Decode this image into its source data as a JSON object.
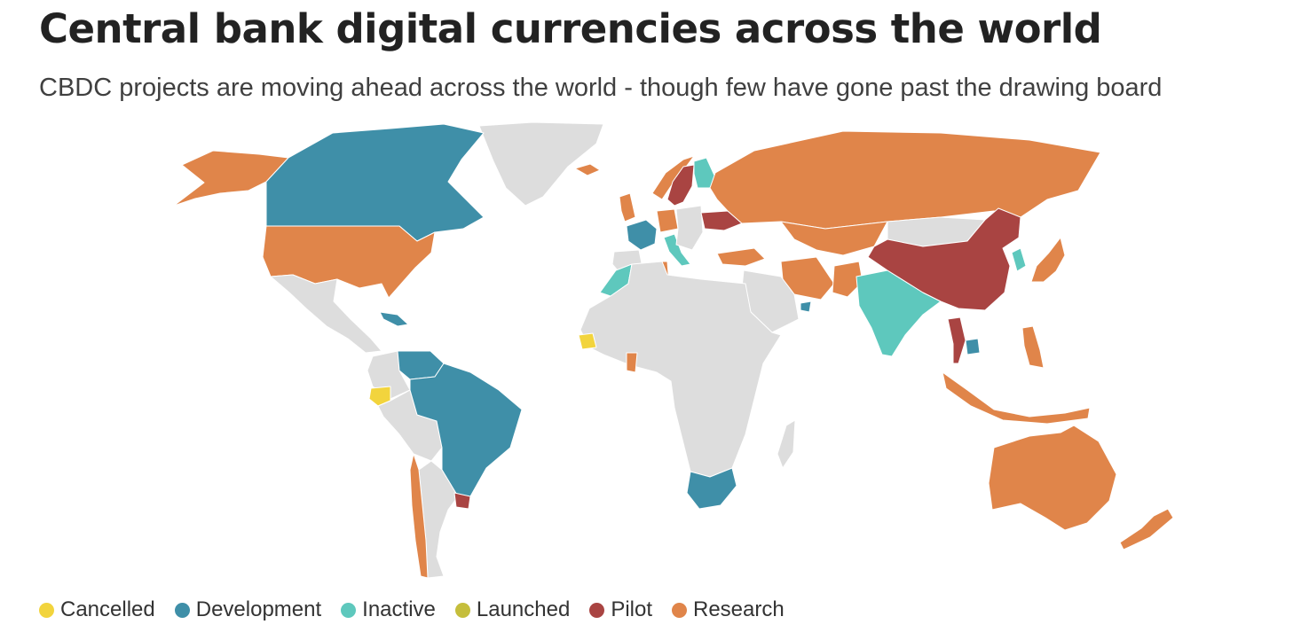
{
  "title": "Central bank digital currencies across the world",
  "subtitle": "CBDC projects are moving ahead across the world - though few have gone past the drawing board",
  "colors": {
    "cancelled": "#f2d43d",
    "development": "#3f8fa8",
    "inactive": "#5ec8bd",
    "launched": "#c5be3c",
    "pilot": "#a94442",
    "research": "#e0854a",
    "none": "#dddddd"
  },
  "legend": [
    {
      "label": "Cancelled",
      "status": "cancelled"
    },
    {
      "label": "Development",
      "status": "development"
    },
    {
      "label": "Inactive",
      "status": "inactive"
    },
    {
      "label": "Launched",
      "status": "launched"
    },
    {
      "label": "Pilot",
      "status": "pilot"
    },
    {
      "label": "Research",
      "status": "research"
    }
  ],
  "regions": [
    {
      "id": "greenland",
      "status": "none"
    },
    {
      "id": "alaska",
      "status": "research"
    },
    {
      "id": "canada",
      "status": "development"
    },
    {
      "id": "united-states",
      "status": "research"
    },
    {
      "id": "mexico-central-america",
      "status": "none"
    },
    {
      "id": "caribbean",
      "status": "development"
    },
    {
      "id": "venezuela",
      "status": "development"
    },
    {
      "id": "colombia",
      "status": "none"
    },
    {
      "id": "ecuador",
      "status": "cancelled"
    },
    {
      "id": "peru-bolivia",
      "status": "none"
    },
    {
      "id": "brazil",
      "status": "development"
    },
    {
      "id": "chile",
      "status": "research"
    },
    {
      "id": "argentina",
      "status": "none"
    },
    {
      "id": "uruguay",
      "status": "pilot"
    },
    {
      "id": "iceland",
      "status": "research"
    },
    {
      "id": "united-kingdom",
      "status": "research"
    },
    {
      "id": "norway",
      "status": "research"
    },
    {
      "id": "sweden",
      "status": "pilot"
    },
    {
      "id": "finland",
      "status": "inactive"
    },
    {
      "id": "france",
      "status": "development"
    },
    {
      "id": "spain",
      "status": "none"
    },
    {
      "id": "germany",
      "status": "research"
    },
    {
      "id": "italy",
      "status": "inactive"
    },
    {
      "id": "eastern-europe",
      "status": "none"
    },
    {
      "id": "ukraine",
      "status": "pilot"
    },
    {
      "id": "russia",
      "status": "research"
    },
    {
      "id": "kazakhstan",
      "status": "research"
    },
    {
      "id": "turkey",
      "status": "research"
    },
    {
      "id": "iran",
      "status": "research"
    },
    {
      "id": "saudi-arabia",
      "status": "none"
    },
    {
      "id": "uae",
      "status": "development"
    },
    {
      "id": "pakistan",
      "status": "research"
    },
    {
      "id": "india",
      "status": "inactive"
    },
    {
      "id": "mongolia",
      "status": "none"
    },
    {
      "id": "china",
      "status": "pilot"
    },
    {
      "id": "korea",
      "status": "inactive"
    },
    {
      "id": "japan",
      "status": "research"
    },
    {
      "id": "thailand",
      "status": "pilot"
    },
    {
      "id": "cambodia",
      "status": "development"
    },
    {
      "id": "philippines",
      "status": "research"
    },
    {
      "id": "indonesia",
      "status": "research"
    },
    {
      "id": "morocco",
      "status": "inactive"
    },
    {
      "id": "tunisia",
      "status": "research"
    },
    {
      "id": "africa",
      "status": "none"
    },
    {
      "id": "senegal",
      "status": "cancelled"
    },
    {
      "id": "ghana",
      "status": "research"
    },
    {
      "id": "south-africa",
      "status": "development"
    },
    {
      "id": "madagascar",
      "status": "none"
    },
    {
      "id": "australia",
      "status": "research"
    },
    {
      "id": "new-zealand",
      "status": "research"
    }
  ]
}
